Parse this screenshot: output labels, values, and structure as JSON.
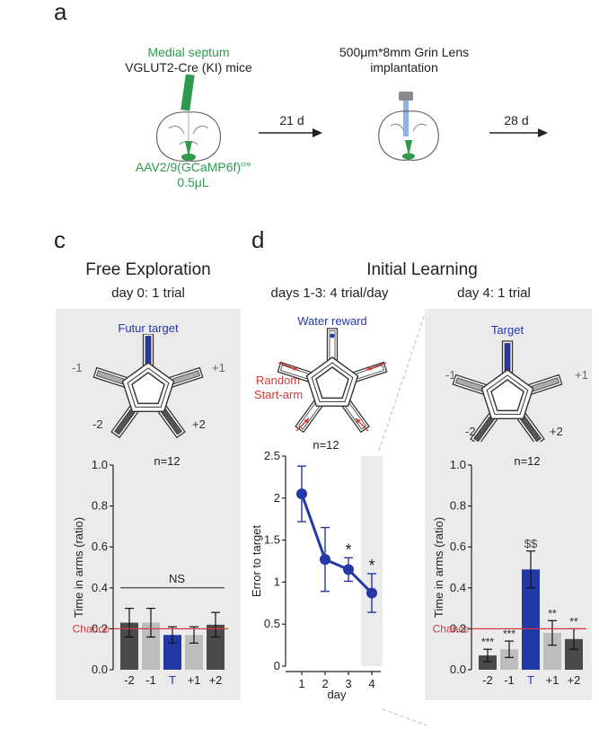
{
  "panel_a": {
    "letter": "a",
    "target_region": "Medial septum",
    "mouse_line": "VGLUT2-Cre (KI) mice",
    "virus": "AAV2/9(GCaMP6f)",
    "virus_sup": "cre",
    "volume": "0.5μL",
    "step1_interval": "21 d",
    "implant_line1": "500μm*8mm Grin Lens",
    "implant_line2": "implantation",
    "step2_interval": "28 d",
    "colors": {
      "green": "#2e9a4e",
      "lens_blue": "#8fb3e6"
    }
  },
  "panel_c": {
    "letter": "c",
    "title": "Free Exploration",
    "subtitle": "day 0: 1 trial",
    "maze_label": "Futur target",
    "arm_labels": [
      "-1",
      "+1",
      "-2",
      "+2"
    ]
  },
  "panel_d": {
    "letter": "d",
    "title": "Initial Learning",
    "sub_left": "days 1-3: 4 trial/day",
    "sub_right": "day 4: 1 trial",
    "maze_left_label": "Water reward",
    "random_line1": "Random",
    "random_line2": "Start-arm",
    "maze_right_label": "Target",
    "arm_labels": [
      "-1",
      "+1",
      "-2",
      "+2"
    ]
  },
  "chart_data": [
    {
      "type": "bar",
      "id": "free-exploration",
      "categories": [
        "-2",
        "-1",
        "T",
        "+1",
        "+2"
      ],
      "values": [
        0.23,
        0.23,
        0.17,
        0.17,
        0.22
      ],
      "errors": [
        0.07,
        0.07,
        0.04,
        0.04,
        0.06
      ],
      "colors": [
        "#4a4a4a",
        "#bdbdbd",
        "#2338a6",
        "#bdbdbd",
        "#4a4a4a"
      ],
      "ylabel": "Time in arms (ratio)",
      "ylim": [
        0,
        1.0
      ],
      "yticks": [
        "0.0",
        "0.2",
        "0.4",
        "0.6",
        "0.8",
        "1.0"
      ],
      "n_label": "n=12",
      "chance": 0.2,
      "chance_label": "Chance",
      "ns_label": "NS",
      "ns_line_y": 0.4
    },
    {
      "type": "line",
      "id": "error-to-target",
      "x": [
        1,
        2,
        3,
        4
      ],
      "xticks": [
        "1",
        "2",
        "3",
        "4"
      ],
      "values": [
        2.05,
        1.27,
        1.15,
        0.87
      ],
      "errors": [
        0.33,
        0.38,
        0.14,
        0.23
      ],
      "stars": [
        "",
        "",
        "*",
        "*"
      ],
      "color": "#2338a6",
      "xlabel": "day",
      "ylabel": "Error to target",
      "ylim": [
        0,
        2.5
      ],
      "yticks": [
        "0",
        "0.5",
        "1",
        "1.5",
        "2",
        "2.5"
      ],
      "n_label": "n=12"
    },
    {
      "type": "bar",
      "id": "day4-probe",
      "categories": [
        "-2",
        "-1",
        "T",
        "+1",
        "+2"
      ],
      "values": [
        0.07,
        0.1,
        0.49,
        0.18,
        0.15
      ],
      "errors": [
        0.03,
        0.04,
        0.09,
        0.06,
        0.05
      ],
      "colors": [
        "#4a4a4a",
        "#bdbdbd",
        "#2338a6",
        "#bdbdbd",
        "#4a4a4a"
      ],
      "stars": [
        "***",
        "***",
        "$$",
        "**",
        "**"
      ],
      "ylabel": "Time in arms (ratio)",
      "ylim": [
        0,
        1.0
      ],
      "yticks": [
        "0.0",
        "0.2",
        "0.4",
        "0.6",
        "0.8",
        "1.0"
      ],
      "n_label": "n=12",
      "chance": 0.2,
      "chance_label": "Chance"
    }
  ]
}
